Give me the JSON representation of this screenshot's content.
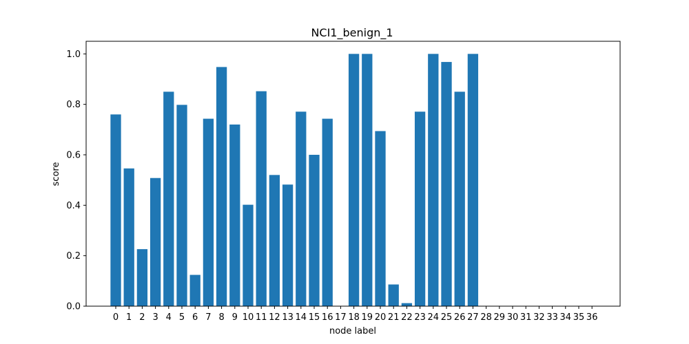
{
  "chart_data": {
    "type": "bar",
    "title": "NCI1_benign_1",
    "xlabel": "node label",
    "ylabel": "score",
    "categories": [
      "0",
      "1",
      "2",
      "3",
      "4",
      "5",
      "6",
      "7",
      "8",
      "9",
      "10",
      "11",
      "12",
      "13",
      "14",
      "15",
      "16",
      "17",
      "18",
      "19",
      "20",
      "21",
      "22",
      "23",
      "24",
      "25",
      "26",
      "27",
      "28",
      "29",
      "30",
      "31",
      "32",
      "33",
      "34",
      "35",
      "36"
    ],
    "values": [
      0.76,
      0.546,
      0.226,
      0.508,
      0.85,
      0.798,
      0.124,
      0.743,
      0.948,
      0.72,
      0.402,
      0.852,
      0.52,
      0.482,
      0.771,
      0.6,
      0.743,
      0,
      1.0,
      1.0,
      0.694,
      0.086,
      0.012,
      0.771,
      1.0,
      0.968,
      0.85,
      1.0,
      0,
      0,
      0,
      0,
      0,
      0,
      0,
      0,
      0
    ],
    "ylim": [
      0,
      1.05
    ],
    "yticks": [
      0.0,
      0.2,
      0.4,
      0.6,
      0.8,
      1.0
    ],
    "ytick_labels": [
      "0.0",
      "0.2",
      "0.4",
      "0.6",
      "0.8",
      "1.0"
    ],
    "grid": false,
    "bar_color": "#1f77b4"
  }
}
